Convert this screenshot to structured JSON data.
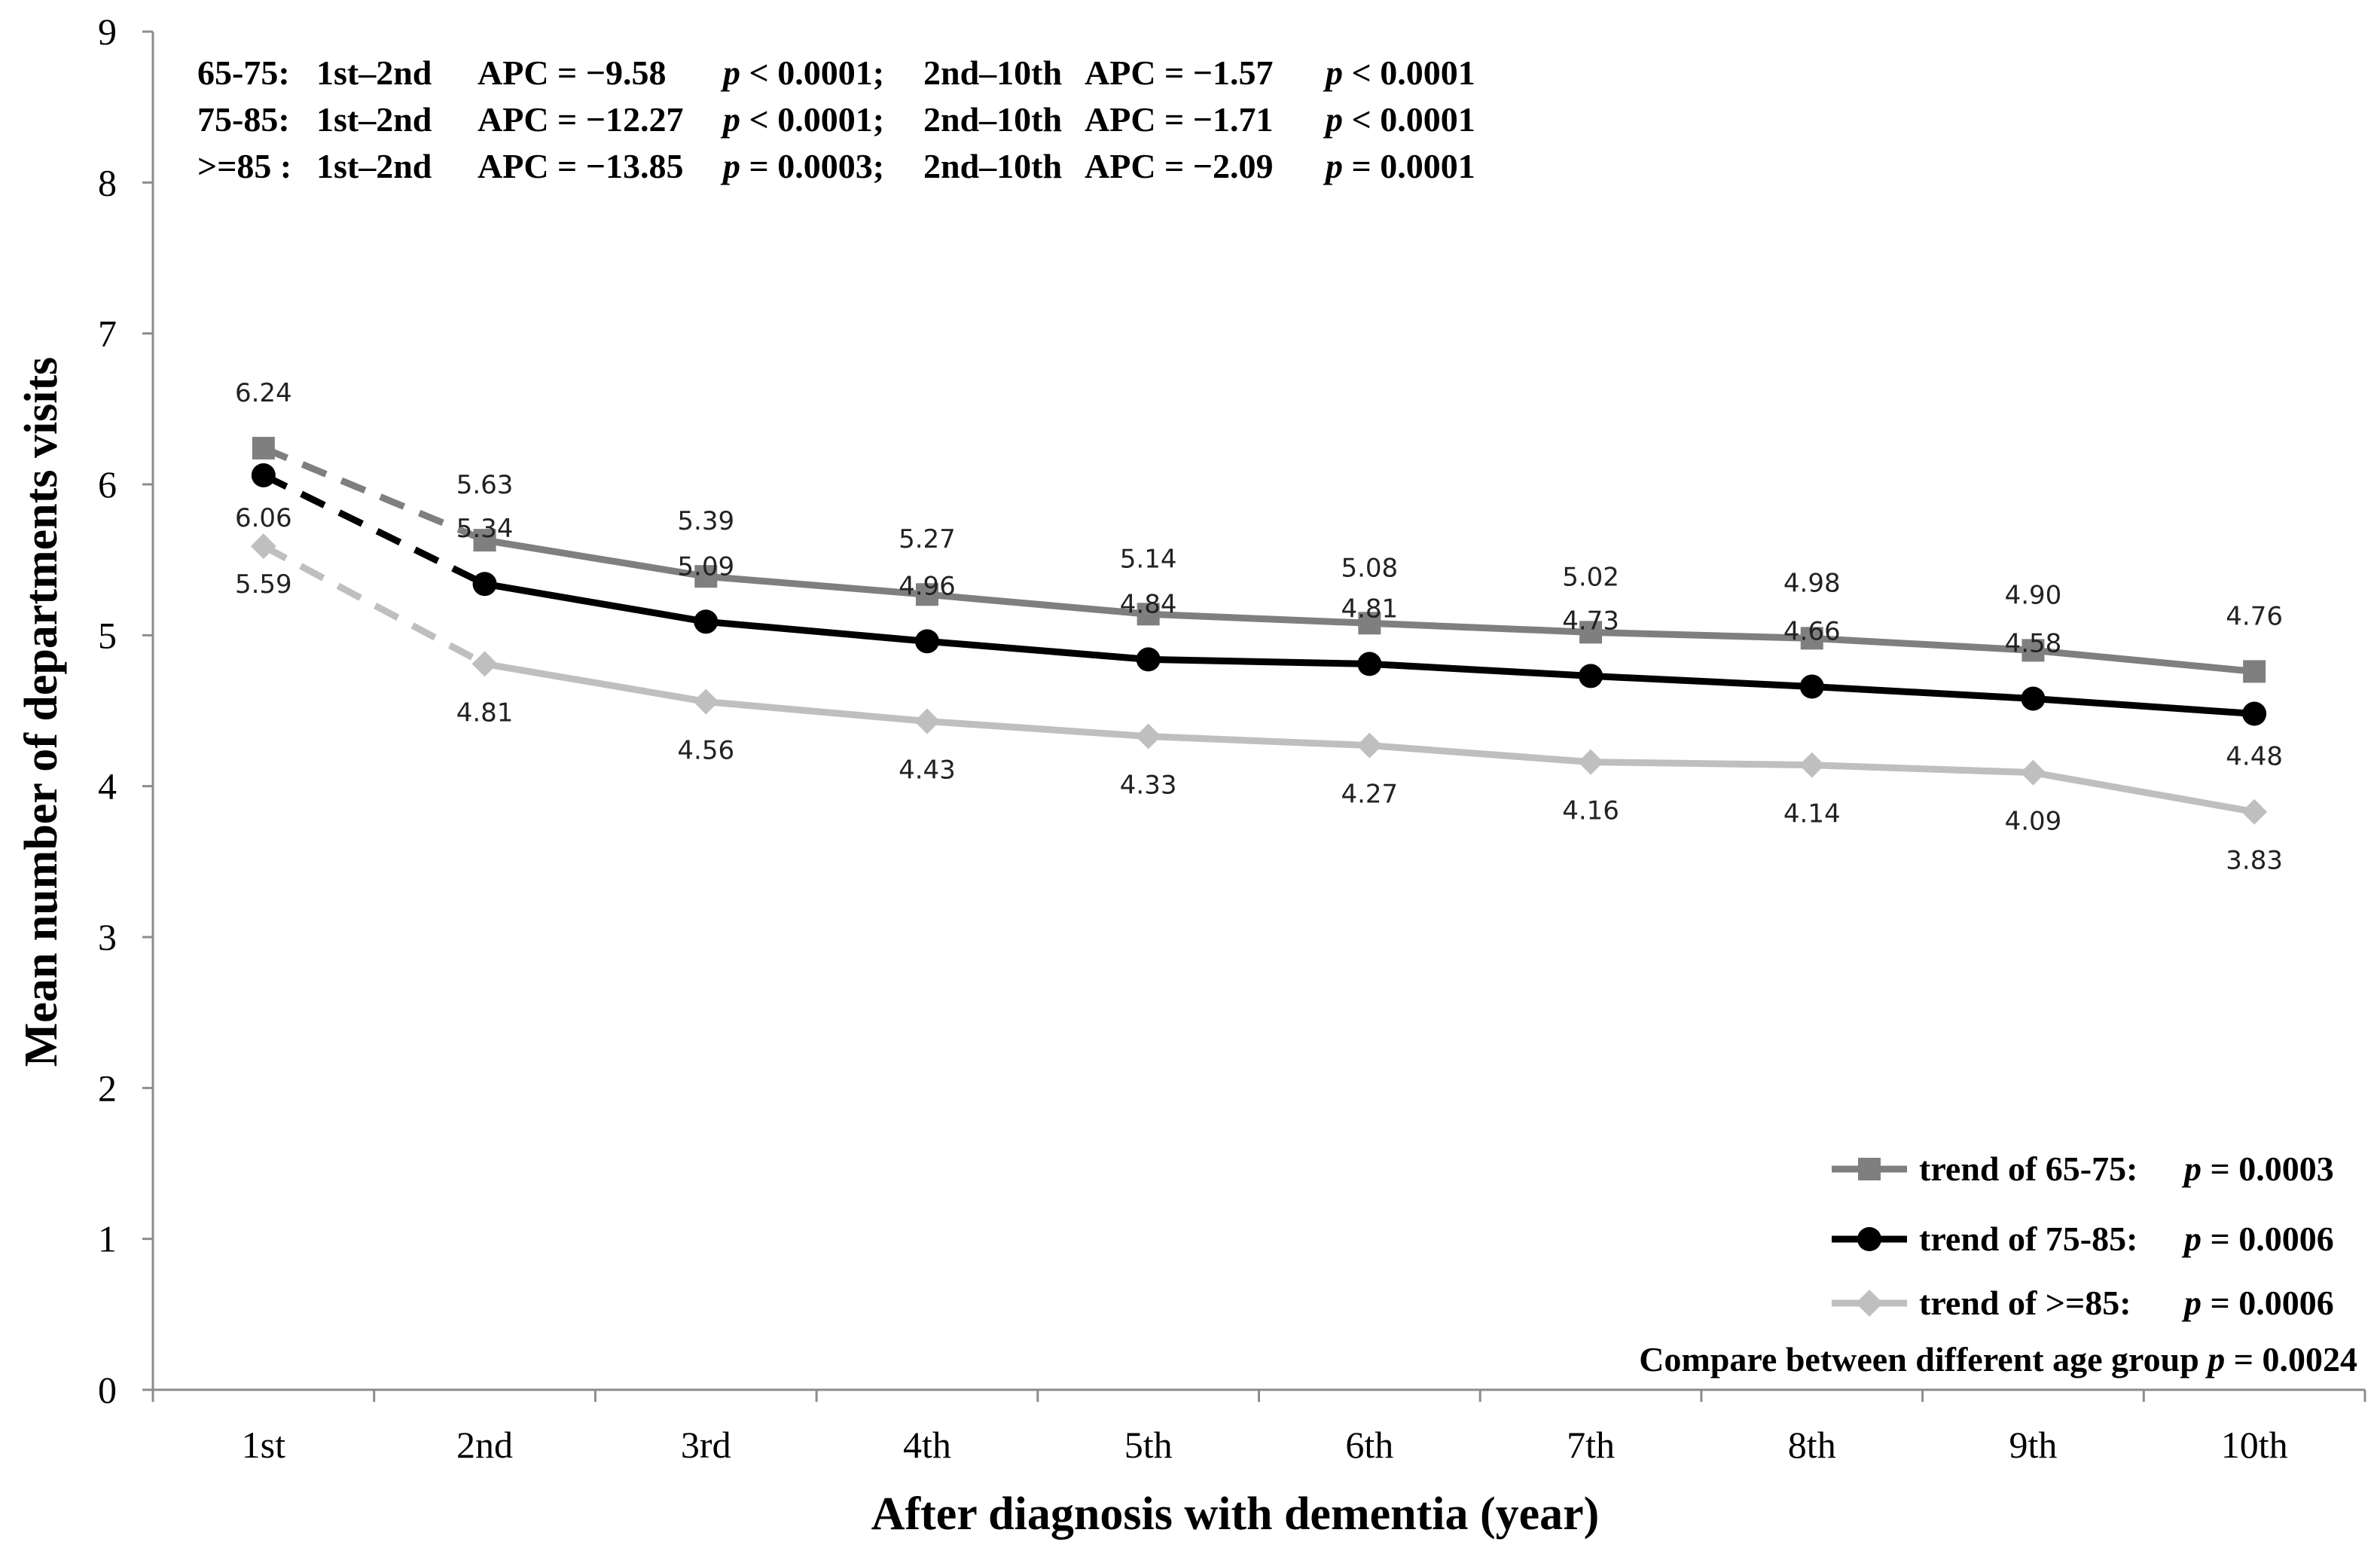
{
  "chart_data": {
    "type": "line",
    "xlabel": "After diagnosis with dementia (year)",
    "ylabel": "Mean number of departments visits",
    "ylim": [
      0,
      9
    ],
    "yticks": [
      "0",
      "1",
      "2",
      "3",
      "4",
      "5",
      "6",
      "7",
      "8",
      "9"
    ],
    "categories": [
      "1st",
      "2nd",
      "3rd",
      "4th",
      "5th",
      "6th",
      "7th",
      "8th",
      "9th",
      "10th"
    ],
    "series": [
      {
        "name": "65-75",
        "color": "#7f7f7f",
        "marker": "square",
        "values": [
          6.24,
          5.63,
          5.39,
          5.27,
          5.14,
          5.08,
          5.02,
          4.98,
          4.9,
          4.76
        ],
        "labels": [
          "6.24",
          "5.63",
          "5.39",
          "5.27",
          "5.14",
          "5.08",
          "5.02",
          "4.98",
          "4.90",
          "4.76"
        ]
      },
      {
        "name": "75-85",
        "color": "#000000",
        "marker": "circle",
        "values": [
          6.06,
          5.34,
          5.09,
          4.96,
          4.84,
          4.81,
          4.73,
          4.66,
          4.58,
          4.48
        ],
        "labels": [
          "6.06",
          "5.34",
          "5.09",
          "4.96",
          "4.84",
          "4.81",
          "4.73",
          "4.66",
          "4.58",
          "4.48"
        ]
      },
      {
        "name": ">=85",
        "color": "#bfbfbf",
        "marker": "diamond",
        "values": [
          5.59,
          4.81,
          4.56,
          4.43,
          4.33,
          4.27,
          4.16,
          4.14,
          4.09,
          3.83
        ],
        "labels": [
          "5.59",
          "4.81",
          "4.56",
          "4.43",
          "4.33",
          "4.27",
          "4.16",
          "4.14",
          "4.09",
          "3.83"
        ]
      }
    ],
    "annotations": [
      {
        "group": "65-75:",
        "seg1": "1st–2nd",
        "apc1": "APC = −9.58",
        "p1": "p",
        "p1v": " < 0.0001;",
        "seg2": "2nd–10th",
        "apc2": "APC = −1.57",
        "p2": "p",
        "p2v": " < 0.0001"
      },
      {
        "group": "75-85:",
        "seg1": "1st–2nd",
        "apc1": "APC = −12.27",
        "p1": "p",
        "p1v": " < 0.0001;",
        "seg2": "2nd–10th",
        "apc2": "APC = −1.71",
        "p2": "p",
        "p2v": " < 0.0001"
      },
      {
        "group": ">=85 :",
        "seg1": "1st–2nd",
        "apc1": "APC = −13.85",
        "p1": "p",
        "p1v": " = 0.0003;",
        "seg2": "2nd–10th",
        "apc2": "APC = −2.09",
        "p2": "p",
        "p2v": " = 0.0001"
      }
    ],
    "legend": [
      {
        "label": "trend of 65-75:",
        "p": "p",
        "pv": " = 0.0003"
      },
      {
        "label": "trend of 75-85:",
        "p": "p",
        "pv": " = 0.0006"
      },
      {
        "label": "trend of >=85:",
        "p": "p",
        "pv": " = 0.0006"
      }
    ],
    "compare_text": "Compare between different age group",
    "compare_p": "p",
    "compare_pv": " = 0.0024"
  }
}
